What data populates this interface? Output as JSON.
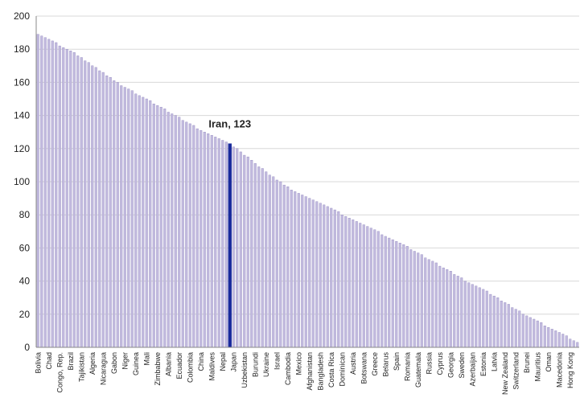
{
  "chart_data": {
    "type": "bar",
    "categories": [
      "Bolivia",
      null,
      null,
      "Chad",
      null,
      null,
      "Congo, Rep.",
      null,
      null,
      "Brazil",
      null,
      null,
      "Tajikistan",
      null,
      null,
      "Algeria",
      null,
      null,
      "Nicaragua",
      null,
      null,
      "Gabon",
      null,
      null,
      "Niger",
      null,
      null,
      "Guinea",
      null,
      null,
      "Mali",
      null,
      null,
      "Zimbabwe",
      null,
      null,
      "Albania",
      null,
      null,
      "Ecuador",
      null,
      null,
      "Colombia",
      null,
      null,
      "China",
      null,
      null,
      "Maldives",
      null,
      null,
      "Nepal",
      null,
      null,
      "Japan",
      null,
      null,
      "Uzbekistan",
      null,
      null,
      "Burundi",
      null,
      null,
      "Ukraine",
      null,
      null,
      "Israel",
      null,
      null,
      "Cambodia",
      null,
      null,
      "Mexico",
      null,
      null,
      "Afghanistan",
      null,
      null,
      "Bangladesh",
      null,
      null,
      "Costa Rica",
      null,
      null,
      "Dominican",
      null,
      null,
      "Austria",
      null,
      null,
      "Botswana",
      null,
      null,
      "Greece",
      null,
      null,
      "Belarus",
      null,
      null,
      "Spain",
      null,
      null,
      "Romania",
      null,
      null,
      "Guatemala",
      null,
      null,
      "Russia",
      null,
      null,
      "Cyprus",
      null,
      null,
      "Georgia",
      null,
      null,
      "Sweden",
      null,
      null,
      "Azerbaijan",
      null,
      null,
      "Estonia",
      null,
      null,
      "Latvia",
      null,
      null,
      "New Zealand",
      null,
      null,
      "Switzerland",
      null,
      null,
      "Brunei",
      null,
      null,
      "Mauritius",
      null,
      null,
      "Oman",
      null,
      null,
      "Macedonia",
      null,
      null,
      "Hong Kong",
      null,
      null
    ],
    "values": [
      189,
      188,
      187,
      186,
      185,
      184,
      182,
      181,
      180,
      179,
      178,
      176,
      175,
      173,
      172,
      170,
      169,
      167,
      166,
      164,
      163,
      161,
      160,
      158,
      157,
      156,
      155,
      153,
      152,
      151,
      150,
      149,
      147,
      146,
      145,
      144,
      142,
      141,
      140,
      139,
      137,
      136,
      135,
      134,
      132,
      131,
      130,
      129,
      128,
      127,
      126,
      125,
      124,
      123,
      121,
      120,
      118,
      116,
      115,
      113,
      111,
      109,
      108,
      106,
      104,
      103,
      101,
      100,
      98,
      97,
      95,
      94,
      93,
      92,
      91,
      90,
      89,
      88,
      87,
      86,
      85,
      84,
      83,
      82,
      80,
      79,
      78,
      77,
      76,
      75,
      74,
      73,
      72,
      71,
      70,
      68,
      67,
      66,
      65,
      64,
      63,
      62,
      61,
      59,
      58,
      57,
      56,
      54,
      53,
      52,
      51,
      49,
      48,
      47,
      46,
      44,
      43,
      42,
      40,
      39,
      38,
      37,
      36,
      35,
      34,
      32,
      31,
      30,
      28,
      27,
      26,
      24,
      23,
      22,
      20,
      19,
      18,
      17,
      16,
      15,
      13,
      12,
      11,
      10,
      9,
      8,
      7,
      5,
      4,
      3
    ],
    "color": "#c4bce0",
    "annotation": {
      "text": "Iran, 123",
      "index": 53,
      "color": "#1a2a9c"
    },
    "ylim": [
      0,
      200
    ],
    "yticks": [
      0,
      20,
      40,
      60,
      80,
      100,
      120,
      140,
      160,
      180,
      200
    ],
    "grid": true
  }
}
